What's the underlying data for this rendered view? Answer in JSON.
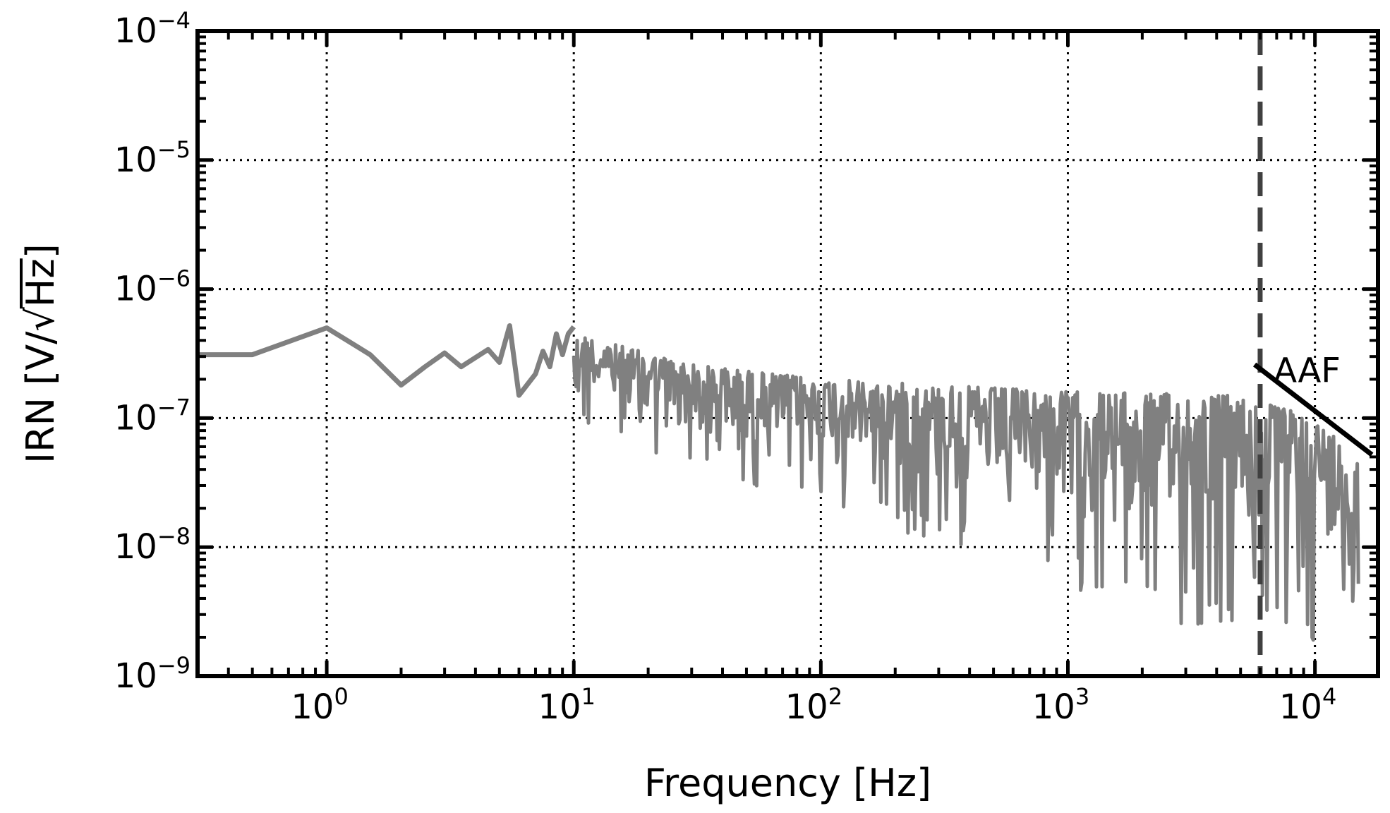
{
  "chart_data": {
    "type": "line",
    "title": "",
    "xlabel": "Frequency [Hz]",
    "ylabel_prefix": "IRN [V/",
    "ylabel_radicand": "Hz",
    "ylabel_suffix": "]",
    "x_scale": "log",
    "y_scale": "log",
    "xlim": [
      0.3,
      18000
    ],
    "ylim": [
      1e-09,
      0.0001
    ],
    "grid": true,
    "x_major_ticks": [
      {
        "value": 1,
        "base": "10",
        "exp": "0"
      },
      {
        "value": 10,
        "base": "10",
        "exp": "1"
      },
      {
        "value": 100,
        "base": "10",
        "exp": "2"
      },
      {
        "value": 1000,
        "base": "10",
        "exp": "3"
      },
      {
        "value": 10000,
        "base": "10",
        "exp": "4"
      }
    ],
    "y_major_ticks": [
      {
        "value": 1e-09,
        "base": "10",
        "exp": "−9"
      },
      {
        "value": 1e-08,
        "base": "10",
        "exp": "−8"
      },
      {
        "value": 1e-07,
        "base": "10",
        "exp": "−7"
      },
      {
        "value": 1e-06,
        "base": "10",
        "exp": "−6"
      },
      {
        "value": 1e-05,
        "base": "10",
        "exp": "−5"
      },
      {
        "value": 0.0001,
        "base": "10",
        "exp": "−4"
      }
    ],
    "series": [
      {
        "color": "#808080",
        "x": [
          0.25,
          0.5,
          1,
          1.5,
          2,
          2.5,
          3,
          3.5,
          4.5,
          5,
          5.5,
          6,
          7,
          7.5,
          8,
          8.5,
          9,
          9.5,
          10
        ],
        "y": [
          3.1e-07,
          3.1e-07,
          5e-07,
          3.1e-07,
          1.8e-07,
          2.5e-07,
          3.2e-07,
          2.5e-07,
          3.4e-07,
          2.7e-07,
          5.2e-07,
          1.5e-07,
          2.2e-07,
          3.3e-07,
          2.5e-07,
          4.5e-07,
          3.1e-07,
          4.5e-07,
          5.1e-07
        ],
        "noise_band": {
          "f_start": 10,
          "f_end": 15000,
          "upper_envelope": [
            [
              10,
              4.5e-07
            ],
            [
              30,
              2.6e-07
            ],
            [
              100,
              2e-07
            ],
            [
              1000,
              1.6e-07
            ],
            [
              5000,
              1.5e-07
            ],
            [
              10000,
              1e-07
            ],
            [
              15000,
              5e-08
            ]
          ],
          "lower_envelope": [
            [
              10,
              8e-08
            ],
            [
              30,
              4e-08
            ],
            [
              100,
              2e-08
            ],
            [
              1000,
              5e-09
            ],
            [
              3000,
              2e-09
            ],
            [
              15000,
              1.5e-09
            ]
          ]
        }
      }
    ],
    "vline": {
      "x": 6000,
      "color": "#404040",
      "style": "dashed"
    },
    "annotation_line": {
      "points": [
        [
          5700,
          2.6e-07
        ],
        [
          17000,
          5.2e-08
        ]
      ],
      "color": "#000000"
    },
    "annotation_text": {
      "text": "AAF",
      "x": 9300,
      "y": 1.9e-07
    }
  }
}
